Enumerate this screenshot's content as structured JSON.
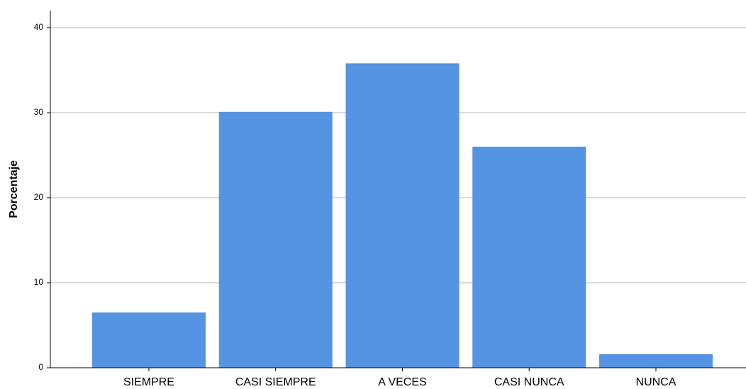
{
  "chart_data": {
    "type": "bar",
    "y_label": "Porcentaje",
    "categories": [
      "SIEMPRE",
      "CASI SIEMPRE",
      "A VECES",
      "CASI NUNCA",
      "NUNCA"
    ],
    "values": [
      6.5,
      30.1,
      35.8,
      26,
      1.6
    ],
    "color": "#5594e3",
    "ylim": [
      0,
      42
    ],
    "yticks": [
      0,
      10,
      20,
      30,
      40
    ],
    "grid": true
  }
}
